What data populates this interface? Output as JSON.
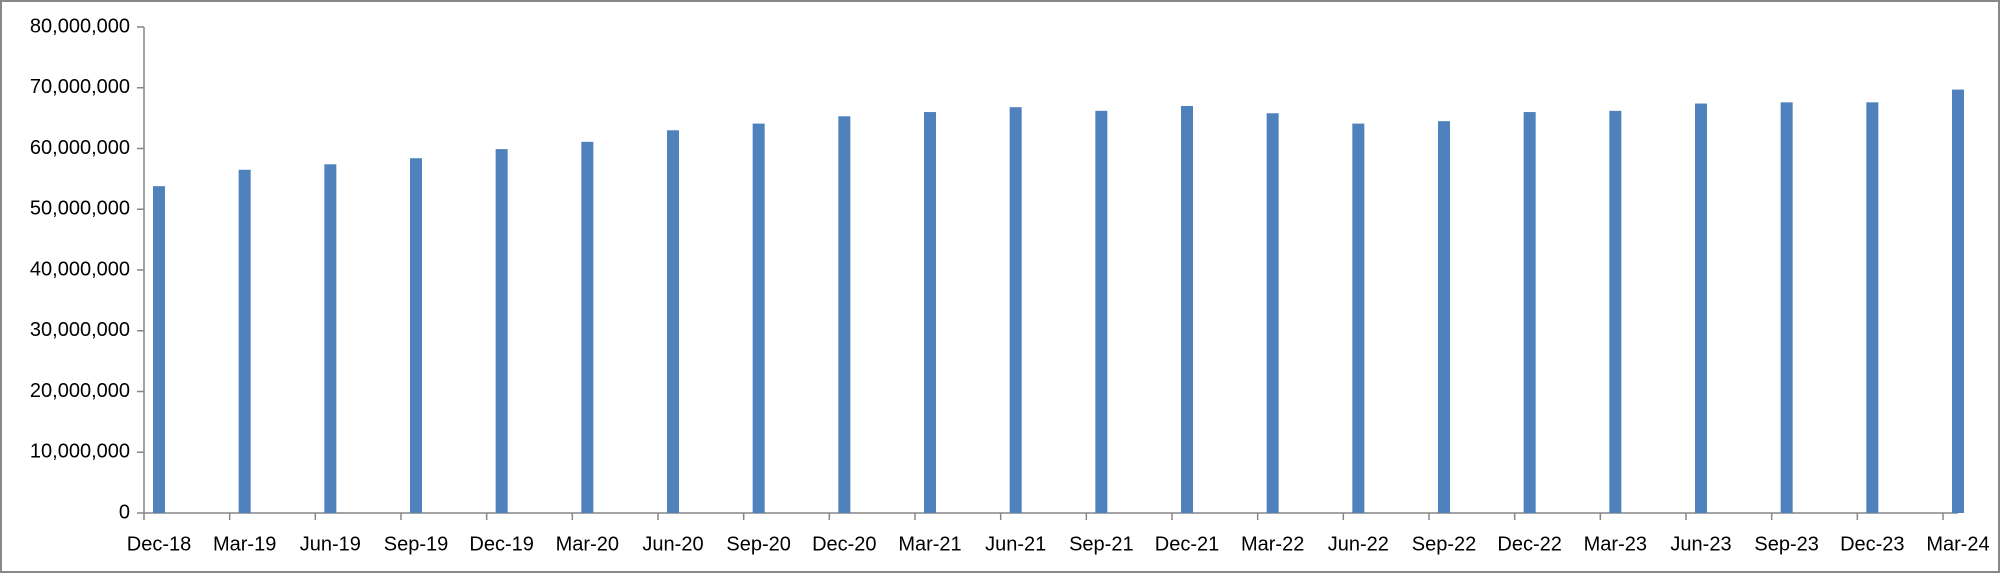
{
  "chart_data": {
    "type": "bar",
    "categories": [
      "Dec-18",
      "Mar-19",
      "Jun-19",
      "Sep-19",
      "Dec-19",
      "Mar-20",
      "Jun-20",
      "Sep-20",
      "Dec-20",
      "Mar-21",
      "Jun-21",
      "Sep-21",
      "Dec-21",
      "Mar-22",
      "Jun-22",
      "Sep-22",
      "Dec-22",
      "Mar-23",
      "Jun-23",
      "Sep-23",
      "Dec-23",
      "Mar-24"
    ],
    "values": [
      53800000,
      56500000,
      57400000,
      58400000,
      59900000,
      61100000,
      63000000,
      64100000,
      65300000,
      66000000,
      66800000,
      66200000,
      67000000,
      65800000,
      64100000,
      64500000,
      66000000,
      66200000,
      67400000,
      67600000,
      67600000,
      69700000
    ],
    "color": "#4f81bd",
    "ylim": [
      0,
      80000000
    ],
    "yticks": [
      0,
      {
        "value": 10000000,
        "label": "10,000,000"
      },
      {
        "value": 20000000,
        "label": "20,000,000"
      },
      {
        "value": 30000000,
        "label": "30,000,000"
      },
      {
        "value": 40000000,
        "label": "40,000,000"
      },
      {
        "value": 50000000,
        "label": "50,000,000"
      },
      {
        "value": 60000000,
        "label": "60,000,000"
      },
      {
        "value": 70000000,
        "label": "70,000,000"
      },
      {
        "value": 80000000,
        "label": "80,000,000"
      }
    ],
    "grid": false
  }
}
